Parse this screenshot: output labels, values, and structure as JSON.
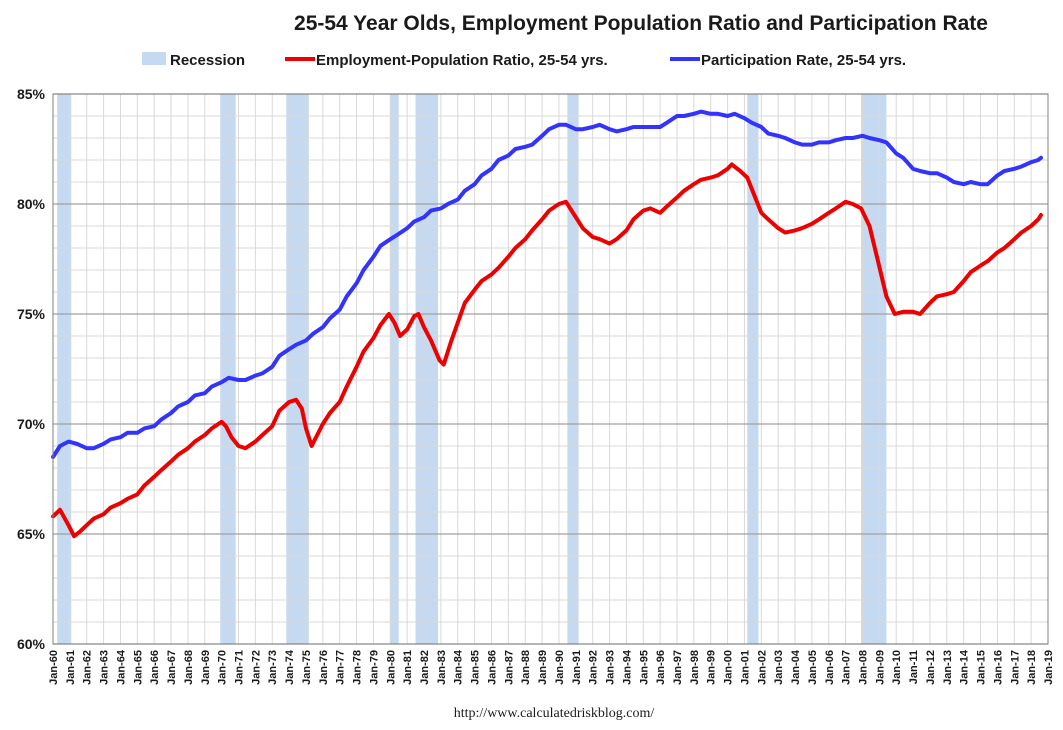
{
  "chart_data": {
    "type": "line",
    "title": "25-54 Year Olds, Employment Population Ratio and Participation Rate",
    "source_url": "http://www.calculatedriskblog.com/",
    "legend_position": "top",
    "grid": true,
    "ylim": [
      60,
      85
    ],
    "y_ticks": [
      "60%",
      "65%",
      "70%",
      "75%",
      "80%",
      "85%"
    ],
    "x_ticks": [
      "Jan-60",
      "Jan-61",
      "Jan-62",
      "Jan-63",
      "Jan-64",
      "Jan-65",
      "Jan-66",
      "Jan-67",
      "Jan-68",
      "Jan-69",
      "Jan-70",
      "Jan-71",
      "Jan-72",
      "Jan-73",
      "Jan-74",
      "Jan-75",
      "Jan-76",
      "Jan-77",
      "Jan-78",
      "Jan-79",
      "Jan-80",
      "Jan-81",
      "Jan-82",
      "Jan-83",
      "Jan-84",
      "Jan-85",
      "Jan-86",
      "Jan-87",
      "Jan-88",
      "Jan-89",
      "Jan-90",
      "Jan-91",
      "Jan-92",
      "Jan-93",
      "Jan-94",
      "Jan-95",
      "Jan-96",
      "Jan-97",
      "Jan-98",
      "Jan-99",
      "Jan-00",
      "Jan-01",
      "Jan-02",
      "Jan-03",
      "Jan-04",
      "Jan-05",
      "Jan-06",
      "Jan-07",
      "Jan-08",
      "Jan-09",
      "Jan-10",
      "Jan-11",
      "Jan-12",
      "Jan-13",
      "Jan-14",
      "Jan-15",
      "Jan-16",
      "Jan-17",
      "Jan-18",
      "Jan-19"
    ],
    "recession_legend": "Recession",
    "recession_color": "#c5d9f1",
    "recessions": [
      {
        "start": "1960-04",
        "end": "1961-02"
      },
      {
        "start": "1969-12",
        "end": "1970-11"
      },
      {
        "start": "1973-11",
        "end": "1975-03"
      },
      {
        "start": "1980-01",
        "end": "1980-07"
      },
      {
        "start": "1981-07",
        "end": "1982-11"
      },
      {
        "start": "1990-07",
        "end": "1991-03"
      },
      {
        "start": "2001-03",
        "end": "2001-11"
      },
      {
        "start": "2007-12",
        "end": "2009-06"
      }
    ],
    "series": [
      {
        "name": "Employment-Population Ratio, 25-54 yrs.",
        "color": "#ee0000",
        "points": [
          [
            "1960-01",
            65.8
          ],
          [
            "1960-06",
            66.1
          ],
          [
            "1960-12",
            65.4
          ],
          [
            "1961-04",
            64.9
          ],
          [
            "1961-08",
            65.1
          ],
          [
            "1962-01",
            65.4
          ],
          [
            "1962-06",
            65.7
          ],
          [
            "1963-01",
            65.9
          ],
          [
            "1963-06",
            66.2
          ],
          [
            "1964-01",
            66.4
          ],
          [
            "1964-06",
            66.6
          ],
          [
            "1965-01",
            66.8
          ],
          [
            "1965-06",
            67.2
          ],
          [
            "1966-01",
            67.6
          ],
          [
            "1966-06",
            67.9
          ],
          [
            "1967-01",
            68.3
          ],
          [
            "1967-06",
            68.6
          ],
          [
            "1968-01",
            68.9
          ],
          [
            "1968-06",
            69.2
          ],
          [
            "1969-01",
            69.5
          ],
          [
            "1969-06",
            69.8
          ],
          [
            "1970-01",
            70.1
          ],
          [
            "1970-04",
            69.9
          ],
          [
            "1970-08",
            69.4
          ],
          [
            "1971-01",
            69.0
          ],
          [
            "1971-06",
            68.9
          ],
          [
            "1972-01",
            69.2
          ],
          [
            "1972-06",
            69.5
          ],
          [
            "1973-01",
            69.9
          ],
          [
            "1973-06",
            70.6
          ],
          [
            "1974-01",
            71.0
          ],
          [
            "1974-06",
            71.1
          ],
          [
            "1974-10",
            70.7
          ],
          [
            "1975-01",
            69.8
          ],
          [
            "1975-05",
            69.0
          ],
          [
            "1975-09",
            69.5
          ],
          [
            "1976-01",
            70.0
          ],
          [
            "1976-06",
            70.5
          ],
          [
            "1977-01",
            71.0
          ],
          [
            "1977-06",
            71.7
          ],
          [
            "1978-01",
            72.6
          ],
          [
            "1978-06",
            73.3
          ],
          [
            "1979-01",
            73.9
          ],
          [
            "1979-06",
            74.5
          ],
          [
            "1979-12",
            75.0
          ],
          [
            "1980-04",
            74.6
          ],
          [
            "1980-08",
            74.0
          ],
          [
            "1981-01",
            74.3
          ],
          [
            "1981-06",
            74.9
          ],
          [
            "1981-09",
            75.0
          ],
          [
            "1982-01",
            74.4
          ],
          [
            "1982-06",
            73.8
          ],
          [
            "1982-12",
            72.9
          ],
          [
            "1983-03",
            72.7
          ],
          [
            "1983-08",
            73.7
          ],
          [
            "1984-01",
            74.6
          ],
          [
            "1984-06",
            75.5
          ],
          [
            "1985-01",
            76.1
          ],
          [
            "1985-06",
            76.5
          ],
          [
            "1986-01",
            76.8
          ],
          [
            "1986-06",
            77.1
          ],
          [
            "1987-01",
            77.6
          ],
          [
            "1987-06",
            78.0
          ],
          [
            "1988-01",
            78.4
          ],
          [
            "1988-06",
            78.8
          ],
          [
            "1989-01",
            79.3
          ],
          [
            "1989-06",
            79.7
          ],
          [
            "1990-01",
            80.0
          ],
          [
            "1990-06",
            80.1
          ],
          [
            "1990-12",
            79.5
          ],
          [
            "1991-06",
            78.9
          ],
          [
            "1992-01",
            78.5
          ],
          [
            "1992-06",
            78.4
          ],
          [
            "1993-01",
            78.2
          ],
          [
            "1993-06",
            78.4
          ],
          [
            "1994-01",
            78.8
          ],
          [
            "1994-06",
            79.3
          ],
          [
            "1995-01",
            79.7
          ],
          [
            "1995-06",
            79.8
          ],
          [
            "1996-01",
            79.6
          ],
          [
            "1996-06",
            79.9
          ],
          [
            "1997-01",
            80.3
          ],
          [
            "1997-06",
            80.6
          ],
          [
            "1998-01",
            80.9
          ],
          [
            "1998-06",
            81.1
          ],
          [
            "1999-01",
            81.2
          ],
          [
            "1999-06",
            81.3
          ],
          [
            "2000-01",
            81.6
          ],
          [
            "2000-04",
            81.8
          ],
          [
            "2000-10",
            81.5
          ],
          [
            "2001-03",
            81.2
          ],
          [
            "2001-08",
            80.4
          ],
          [
            "2002-01",
            79.6
          ],
          [
            "2002-06",
            79.3
          ],
          [
            "2003-01",
            78.9
          ],
          [
            "2003-06",
            78.7
          ],
          [
            "2004-01",
            78.8
          ],
          [
            "2004-06",
            78.9
          ],
          [
            "2005-01",
            79.1
          ],
          [
            "2005-06",
            79.3
          ],
          [
            "2006-01",
            79.6
          ],
          [
            "2006-06",
            79.8
          ],
          [
            "2007-01",
            80.1
          ],
          [
            "2007-06",
            80.0
          ],
          [
            "2007-12",
            79.8
          ],
          [
            "2008-06",
            79.0
          ],
          [
            "2008-12",
            77.4
          ],
          [
            "2009-06",
            75.8
          ],
          [
            "2009-12",
            75.0
          ],
          [
            "2010-06",
            75.1
          ],
          [
            "2011-01",
            75.1
          ],
          [
            "2011-06",
            75.0
          ],
          [
            "2012-01",
            75.5
          ],
          [
            "2012-06",
            75.8
          ],
          [
            "2013-01",
            75.9
          ],
          [
            "2013-06",
            76.0
          ],
          [
            "2014-01",
            76.5
          ],
          [
            "2014-06",
            76.9
          ],
          [
            "2015-01",
            77.2
          ],
          [
            "2015-06",
            77.4
          ],
          [
            "2016-01",
            77.8
          ],
          [
            "2016-06",
            78.0
          ],
          [
            "2017-01",
            78.4
          ],
          [
            "2017-06",
            78.7
          ],
          [
            "2018-01",
            79.0
          ],
          [
            "2018-06",
            79.3
          ],
          [
            "2018-08",
            79.5
          ]
        ]
      },
      {
        "name": "Participation Rate, 25-54 yrs.",
        "color": "#3333ff",
        "points": [
          [
            "1960-01",
            68.5
          ],
          [
            "1960-06",
            69.0
          ],
          [
            "1960-12",
            69.2
          ],
          [
            "1961-06",
            69.1
          ],
          [
            "1962-01",
            68.9
          ],
          [
            "1962-06",
            68.9
          ],
          [
            "1963-01",
            69.1
          ],
          [
            "1963-06",
            69.3
          ],
          [
            "1964-01",
            69.4
          ],
          [
            "1964-06",
            69.6
          ],
          [
            "1965-01",
            69.6
          ],
          [
            "1965-06",
            69.8
          ],
          [
            "1966-01",
            69.9
          ],
          [
            "1966-06",
            70.2
          ],
          [
            "1967-01",
            70.5
          ],
          [
            "1967-06",
            70.8
          ],
          [
            "1968-01",
            71.0
          ],
          [
            "1968-06",
            71.3
          ],
          [
            "1969-01",
            71.4
          ],
          [
            "1969-06",
            71.7
          ],
          [
            "1970-01",
            71.9
          ],
          [
            "1970-06",
            72.1
          ],
          [
            "1971-01",
            72.0
          ],
          [
            "1971-06",
            72.0
          ],
          [
            "1972-01",
            72.2
          ],
          [
            "1972-06",
            72.3
          ],
          [
            "1973-01",
            72.6
          ],
          [
            "1973-06",
            73.1
          ],
          [
            "1974-01",
            73.4
          ],
          [
            "1974-06",
            73.6
          ],
          [
            "1975-01",
            73.8
          ],
          [
            "1975-06",
            74.1
          ],
          [
            "1976-01",
            74.4
          ],
          [
            "1976-06",
            74.8
          ],
          [
            "1977-01",
            75.2
          ],
          [
            "1977-06",
            75.8
          ],
          [
            "1978-01",
            76.4
          ],
          [
            "1978-06",
            77.0
          ],
          [
            "1979-01",
            77.6
          ],
          [
            "1979-06",
            78.1
          ],
          [
            "1980-01",
            78.4
          ],
          [
            "1980-06",
            78.6
          ],
          [
            "1981-01",
            78.9
          ],
          [
            "1981-06",
            79.2
          ],
          [
            "1982-01",
            79.4
          ],
          [
            "1982-06",
            79.7
          ],
          [
            "1983-01",
            79.8
          ],
          [
            "1983-06",
            80.0
          ],
          [
            "1984-01",
            80.2
          ],
          [
            "1984-06",
            80.6
          ],
          [
            "1985-01",
            80.9
          ],
          [
            "1985-06",
            81.3
          ],
          [
            "1986-01",
            81.6
          ],
          [
            "1986-06",
            82.0
          ],
          [
            "1987-01",
            82.2
          ],
          [
            "1987-06",
            82.5
          ],
          [
            "1988-01",
            82.6
          ],
          [
            "1988-06",
            82.7
          ],
          [
            "1989-01",
            83.1
          ],
          [
            "1989-06",
            83.4
          ],
          [
            "1990-01",
            83.6
          ],
          [
            "1990-06",
            83.6
          ],
          [
            "1991-01",
            83.4
          ],
          [
            "1991-06",
            83.4
          ],
          [
            "1992-01",
            83.5
          ],
          [
            "1992-06",
            83.6
          ],
          [
            "1993-01",
            83.4
          ],
          [
            "1993-06",
            83.3
          ],
          [
            "1994-01",
            83.4
          ],
          [
            "1994-06",
            83.5
          ],
          [
            "1995-01",
            83.5
          ],
          [
            "1995-06",
            83.5
          ],
          [
            "1996-01",
            83.5
          ],
          [
            "1996-06",
            83.7
          ],
          [
            "1997-01",
            84.0
          ],
          [
            "1997-06",
            84.0
          ],
          [
            "1998-01",
            84.1
          ],
          [
            "1998-06",
            84.2
          ],
          [
            "1999-01",
            84.1
          ],
          [
            "1999-06",
            84.1
          ],
          [
            "2000-01",
            84.0
          ],
          [
            "2000-06",
            84.1
          ],
          [
            "2001-01",
            83.9
          ],
          [
            "2001-06",
            83.7
          ],
          [
            "2002-01",
            83.5
          ],
          [
            "2002-06",
            83.2
          ],
          [
            "2003-01",
            83.1
          ],
          [
            "2003-06",
            83.0
          ],
          [
            "2004-01",
            82.8
          ],
          [
            "2004-06",
            82.7
          ],
          [
            "2005-01",
            82.7
          ],
          [
            "2005-06",
            82.8
          ],
          [
            "2006-01",
            82.8
          ],
          [
            "2006-06",
            82.9
          ],
          [
            "2007-01",
            83.0
          ],
          [
            "2007-06",
            83.0
          ],
          [
            "2008-01",
            83.1
          ],
          [
            "2008-06",
            83.0
          ],
          [
            "2009-01",
            82.9
          ],
          [
            "2009-06",
            82.8
          ],
          [
            "2010-01",
            82.3
          ],
          [
            "2010-06",
            82.1
          ],
          [
            "2011-01",
            81.6
          ],
          [
            "2011-06",
            81.5
          ],
          [
            "2012-01",
            81.4
          ],
          [
            "2012-06",
            81.4
          ],
          [
            "2013-01",
            81.2
          ],
          [
            "2013-06",
            81.0
          ],
          [
            "2014-01",
            80.9
          ],
          [
            "2014-06",
            81.0
          ],
          [
            "2015-01",
            80.9
          ],
          [
            "2015-06",
            80.9
          ],
          [
            "2016-01",
            81.3
          ],
          [
            "2016-06",
            81.5
          ],
          [
            "2017-01",
            81.6
          ],
          [
            "2017-06",
            81.7
          ],
          [
            "2018-01",
            81.9
          ],
          [
            "2018-06",
            82.0
          ],
          [
            "2018-08",
            82.1
          ]
        ]
      }
    ]
  }
}
